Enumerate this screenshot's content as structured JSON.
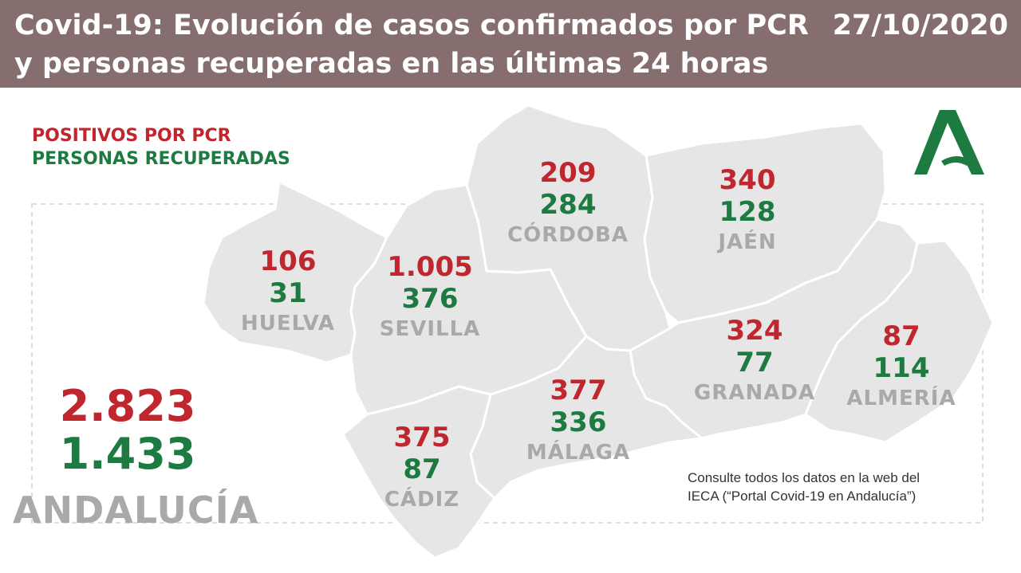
{
  "header": {
    "title": "Covid-19: Evolución de casos confirmados por PCR y personas recuperadas en las últimas 24 horas",
    "date": "27/10/2020"
  },
  "legend": {
    "positive_label": "POSITIVOS POR PCR",
    "recovered_label": "PERSONAS RECUPERADAS"
  },
  "colors": {
    "header_bg": "#876e6e",
    "positive": "#c0262d",
    "recovered": "#1d7a40",
    "map_fill": "#e6e6e6",
    "label_gray": "#a9a9a9",
    "logo_green": "#1d7a40"
  },
  "provinces": [
    {
      "name": "HUELVA",
      "positive": "106",
      "recovered": "31"
    },
    {
      "name": "SEVILLA",
      "positive": "1.005",
      "recovered": "376"
    },
    {
      "name": "CÓRDOBA",
      "positive": "209",
      "recovered": "284"
    },
    {
      "name": "JAÉN",
      "positive": "340",
      "recovered": "128"
    },
    {
      "name": "GRANADA",
      "positive": "324",
      "recovered": "77"
    },
    {
      "name": "ALMERÍA",
      "positive": "87",
      "recovered": "114"
    },
    {
      "name": "MÁLAGA",
      "positive": "377",
      "recovered": "336"
    },
    {
      "name": "CÁDIZ",
      "positive": "375",
      "recovered": "87"
    }
  ],
  "total": {
    "region": "ANDALUCÍA",
    "positive": "2.823",
    "recovered": "1.433"
  },
  "note": {
    "line1": "Consulte todos los datos en la web del",
    "line2": "IECA (“Portal Covid-19 en Andalucía”)"
  },
  "logo": {
    "icon": "junta-de-andalucia-logo-icon"
  }
}
